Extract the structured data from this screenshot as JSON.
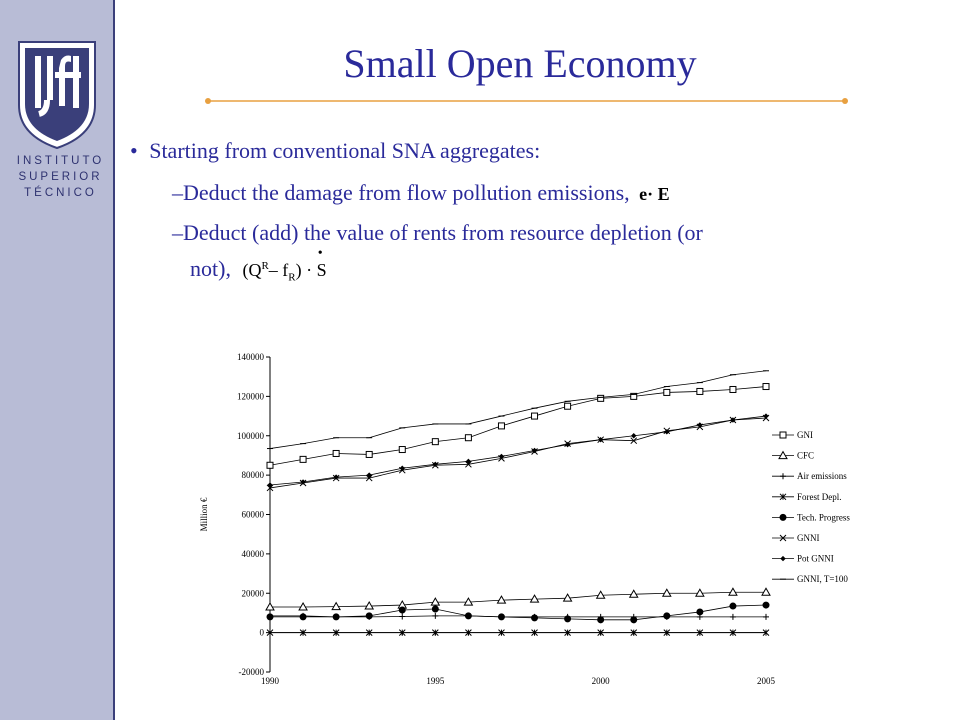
{
  "sidebar": {
    "institute_lines": [
      "INSTITUTO",
      "SUPERIOR",
      "TÉCNICO"
    ],
    "logo_letters": "IST"
  },
  "slide": {
    "title": "Small Open Economy",
    "bullet": "Starting from conventional SNA aggregates:",
    "sub1_text": "Deduct the damage from flow pollution emissions,",
    "sub1_formula": "e· E",
    "sub2_line1": "Deduct (add) the value of rents from resource depletion (or",
    "sub2_line2": "not),",
    "sub2_formula_a": "(Q",
    "sub2_formula_sup": "R",
    "sub2_formula_b": "– f",
    "sub2_formula_sub": "R",
    "sub2_formula_c": ") · S",
    "dash": "–",
    "bullet_mark": "•"
  },
  "chart_data": {
    "type": "line",
    "title": "",
    "xlabel": "",
    "ylabel": "Million €",
    "ylim": [
      -20000,
      140000
    ],
    "yticks": [
      -20000,
      0,
      20000,
      40000,
      60000,
      80000,
      100000,
      120000,
      140000
    ],
    "xticks": [
      1990,
      1995,
      2000,
      2005
    ],
    "grid": false,
    "legend_position": "right",
    "x": [
      1990,
      1991,
      1992,
      1993,
      1994,
      1995,
      1996,
      1997,
      1998,
      1999,
      2000,
      2001,
      2002,
      2003,
      2004,
      2005
    ],
    "series": [
      {
        "name": "GNI",
        "marker": "square",
        "values": [
          85000,
          88000,
          91000,
          90500,
          93000,
          97000,
          99000,
          105000,
          110000,
          115000,
          119000,
          120000,
          122000,
          122500,
          123500,
          125000
        ]
      },
      {
        "name": "CFC",
        "marker": "triangle",
        "values": [
          13000,
          13000,
          13200,
          13500,
          14000,
          15500,
          15500,
          16500,
          17000,
          17500,
          19000,
          19500,
          20000,
          20000,
          20500,
          20500
        ]
      },
      {
        "name": "Air emissions",
        "marker": "plus",
        "values": [
          8500,
          8500,
          8000,
          8000,
          8200,
          8500,
          8500,
          8000,
          8000,
          8000,
          8000,
          8000,
          8000,
          8000,
          8000,
          8000
        ]
      },
      {
        "name": "Forest Depl.",
        "marker": "asterisk",
        "values": [
          0,
          0,
          0,
          0,
          0,
          0,
          0,
          0,
          0,
          0,
          0,
          0,
          0,
          0,
          0,
          0
        ]
      },
      {
        "name": "Tech. Progress",
        "marker": "circle",
        "values": [
          8000,
          8000,
          8000,
          8500,
          11500,
          12000,
          8500,
          8000,
          7500,
          7000,
          6500,
          6500,
          8500,
          10500,
          13500,
          14000
        ]
      },
      {
        "name": "GNNI",
        "marker": "x",
        "values": [
          73500,
          76000,
          78500,
          78500,
          82500,
          85000,
          85500,
          88500,
          92000,
          96000,
          98000,
          97500,
          102500,
          104500,
          108000,
          109000
        ]
      },
      {
        "name": "Pot GNNI",
        "marker": "diamond",
        "values": [
          75000,
          76500,
          79000,
          80000,
          83500,
          85500,
          87000,
          89500,
          92500,
          95500,
          98000,
          100000,
          102000,
          105500,
          108000,
          110000
        ]
      },
      {
        "name": "GNNI, T=100",
        "marker": "dash",
        "values": [
          93500,
          96000,
          99000,
          99000,
          104000,
          106000,
          106000,
          110000,
          114000,
          117500,
          119500,
          121000,
          125000,
          127000,
          131000,
          133000
        ]
      }
    ]
  }
}
